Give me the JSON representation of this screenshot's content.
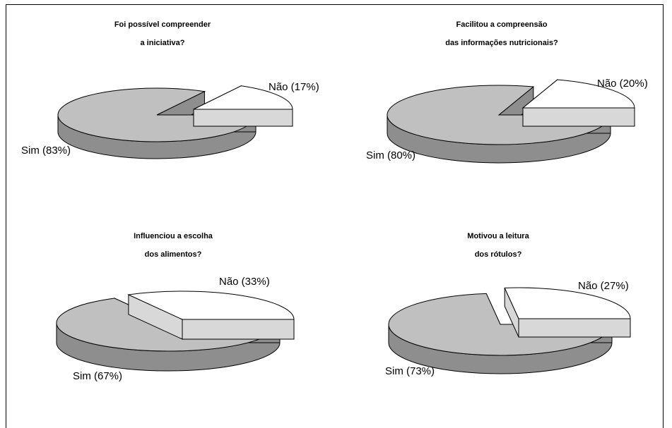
{
  "colors": {
    "sim": "#c0c0c0",
    "sim_side": "#8e8e8e",
    "nao": "#ffffff",
    "nao_side": "#d8d8d8",
    "outline": "#000000"
  },
  "chart_data": [
    {
      "type": "pie",
      "title_lines": [
        "Foi possível compreender",
        "a iniciativa?"
      ],
      "slices": [
        {
          "label": "Sim (83%)",
          "value": 83
        },
        {
          "label": "Não (17%)",
          "value": 17
        }
      ]
    },
    {
      "type": "pie",
      "title_lines": [
        "Facilitou a compreensão",
        "das informações nutricionais?"
      ],
      "slices": [
        {
          "label": "Sim (80%)",
          "value": 80
        },
        {
          "label": "Não (20%)",
          "value": 20
        }
      ]
    },
    {
      "type": "pie",
      "title_lines": [
        "Influenciou a escolha",
        "dos alimentos?"
      ],
      "slices": [
        {
          "label": "Sim (67%)",
          "value": 67
        },
        {
          "label": "Não (33%)",
          "value": 33
        }
      ]
    },
    {
      "type": "pie",
      "title_lines": [
        "Motivou a leitura",
        "dos rótulos?"
      ],
      "slices": [
        {
          "label": "Sim (73%)",
          "value": 73
        },
        {
          "label": "Não (27%)",
          "value": 27
        }
      ]
    }
  ]
}
